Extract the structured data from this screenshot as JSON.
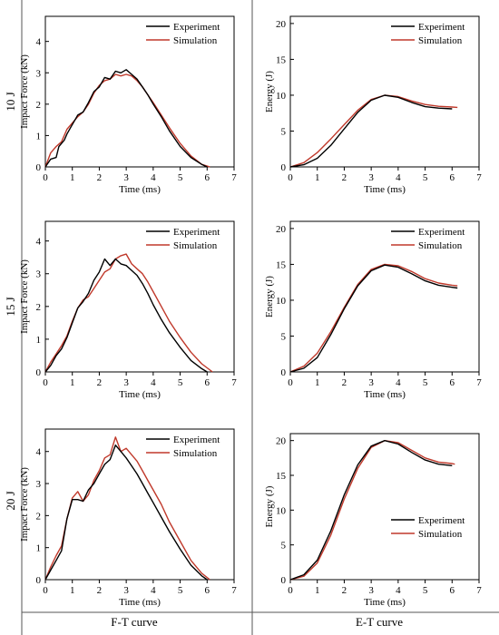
{
  "row_labels": [
    "10 J",
    "15 J",
    "20 J"
  ],
  "column_labels": [
    "F-T curve",
    "E-T curve"
  ],
  "legend": [
    "Experiment",
    "Simulation"
  ],
  "colors": {
    "experiment": "#000000",
    "simulation": "#c0392b",
    "frame": "#555555"
  },
  "chart_data": [
    {
      "type": "line",
      "row": "10 J",
      "column": "F-T curve",
      "xlabel": "Time (ms)",
      "ylabel": "Impact Force (kN)",
      "xlim": [
        0,
        7
      ],
      "ylim": [
        0,
        4.8
      ],
      "xticks": [
        0,
        1,
        2,
        3,
        4,
        5,
        6,
        7
      ],
      "yticks": [
        0,
        1,
        2,
        3,
        4
      ],
      "legend_position": "top-right",
      "series": [
        {
          "name": "Experiment",
          "x": [
            0,
            0.2,
            0.4,
            0.5,
            0.7,
            0.8,
            1.0,
            1.2,
            1.4,
            1.6,
            1.8,
            2.0,
            2.2,
            2.4,
            2.6,
            2.8,
            3.0,
            3.2,
            3.4,
            3.6,
            3.8,
            4.0,
            4.3,
            4.6,
            5.0,
            5.4,
            5.8,
            6.0
          ],
          "y": [
            0.0,
            0.25,
            0.3,
            0.65,
            0.85,
            1.05,
            1.35,
            1.65,
            1.75,
            2.05,
            2.4,
            2.55,
            2.85,
            2.8,
            3.05,
            3.0,
            3.1,
            2.95,
            2.8,
            2.55,
            2.3,
            2.0,
            1.6,
            1.15,
            0.65,
            0.3,
            0.08,
            0.0
          ]
        },
        {
          "name": "Simulation",
          "x": [
            0,
            0.2,
            0.4,
            0.6,
            0.8,
            1.0,
            1.2,
            1.4,
            1.6,
            1.8,
            2.0,
            2.2,
            2.4,
            2.6,
            2.8,
            3.0,
            3.2,
            3.4,
            3.6,
            3.8,
            4.0,
            4.3,
            4.6,
            5.0,
            5.4,
            5.8,
            6.1
          ],
          "y": [
            0.0,
            0.45,
            0.65,
            0.8,
            1.2,
            1.4,
            1.6,
            1.75,
            2.0,
            2.35,
            2.6,
            2.75,
            2.8,
            2.95,
            2.9,
            2.95,
            2.9,
            2.75,
            2.55,
            2.3,
            2.05,
            1.65,
            1.25,
            0.75,
            0.35,
            0.08,
            0.0
          ]
        }
      ]
    },
    {
      "type": "line",
      "row": "10 J",
      "column": "E-T curve",
      "xlabel": "Time (ms)",
      "ylabel": "Energy (J)",
      "xlim": [
        0,
        7
      ],
      "ylim": [
        0,
        21
      ],
      "xticks": [
        0,
        1,
        2,
        3,
        4,
        5,
        6,
        7
      ],
      "yticks": [
        0,
        5,
        10,
        15,
        20
      ],
      "legend_position": "top-right",
      "series": [
        {
          "name": "Experiment",
          "x": [
            0,
            0.5,
            1.0,
            1.5,
            2.0,
            2.5,
            3.0,
            3.5,
            4.0,
            4.5,
            5.0,
            5.5,
            6.0
          ],
          "y": [
            0,
            0.3,
            1.2,
            3.0,
            5.3,
            7.6,
            9.3,
            10.0,
            9.7,
            9.0,
            8.4,
            8.2,
            8.1
          ]
        },
        {
          "name": "Simulation",
          "x": [
            0,
            0.5,
            1.0,
            1.5,
            2.0,
            2.5,
            3.0,
            3.5,
            4.0,
            4.5,
            5.0,
            5.5,
            6.0,
            6.2
          ],
          "y": [
            0,
            0.6,
            2.0,
            3.9,
            5.9,
            7.9,
            9.4,
            10.0,
            9.8,
            9.2,
            8.7,
            8.45,
            8.35,
            8.3
          ]
        }
      ]
    },
    {
      "type": "line",
      "row": "15 J",
      "column": "F-T curve",
      "xlabel": "Time (ms)",
      "ylabel": "Impact Force (kN)",
      "xlim": [
        0,
        7
      ],
      "ylim": [
        0,
        4.6
      ],
      "xticks": [
        0,
        1,
        2,
        3,
        4,
        5,
        6,
        7
      ],
      "yticks": [
        0,
        1,
        2,
        3,
        4
      ],
      "legend_position": "top-right",
      "series": [
        {
          "name": "Experiment",
          "x": [
            0,
            0.2,
            0.4,
            0.6,
            0.8,
            1.0,
            1.2,
            1.4,
            1.6,
            1.8,
            2.0,
            2.2,
            2.4,
            2.6,
            2.8,
            3.0,
            3.2,
            3.4,
            3.6,
            3.8,
            4.0,
            4.3,
            4.6,
            5.0,
            5.4,
            5.8,
            6.0
          ],
          "y": [
            0.0,
            0.2,
            0.5,
            0.7,
            1.05,
            1.5,
            1.95,
            2.15,
            2.4,
            2.8,
            3.05,
            3.45,
            3.25,
            3.45,
            3.3,
            3.25,
            3.1,
            2.95,
            2.7,
            2.4,
            2.05,
            1.6,
            1.2,
            0.75,
            0.35,
            0.1,
            0.0
          ]
        },
        {
          "name": "Simulation",
          "x": [
            0,
            0.2,
            0.4,
            0.6,
            0.8,
            1.0,
            1.2,
            1.4,
            1.6,
            1.8,
            2.0,
            2.2,
            2.4,
            2.6,
            2.8,
            3.0,
            3.2,
            3.4,
            3.6,
            3.8,
            4.0,
            4.3,
            4.6,
            5.0,
            5.4,
            5.8,
            6.2
          ],
          "y": [
            0.0,
            0.3,
            0.55,
            0.8,
            1.1,
            1.55,
            1.95,
            2.2,
            2.3,
            2.55,
            2.8,
            3.05,
            3.15,
            3.45,
            3.55,
            3.6,
            3.3,
            3.15,
            3.0,
            2.75,
            2.45,
            2.0,
            1.55,
            1.05,
            0.6,
            0.25,
            0.0
          ]
        }
      ]
    },
    {
      "type": "line",
      "row": "15 J",
      "column": "E-T curve",
      "xlabel": "Time (ms)",
      "ylabel": "Energy (J)",
      "xlim": [
        0,
        7
      ],
      "ylim": [
        0,
        21
      ],
      "xticks": [
        0,
        1,
        2,
        3,
        4,
        5,
        6,
        7
      ],
      "yticks": [
        0,
        5,
        10,
        15,
        20
      ],
      "legend_position": "top-right",
      "series": [
        {
          "name": "Experiment",
          "x": [
            0,
            0.5,
            1.0,
            1.5,
            2.0,
            2.5,
            3.0,
            3.5,
            4.0,
            4.5,
            5.0,
            5.5,
            6.0,
            6.2
          ],
          "y": [
            0,
            0.5,
            2.0,
            5.2,
            8.8,
            12.0,
            14.1,
            14.9,
            14.6,
            13.7,
            12.7,
            12.1,
            11.8,
            11.7
          ]
        },
        {
          "name": "Simulation",
          "x": [
            0,
            0.5,
            1.0,
            1.5,
            2.0,
            2.5,
            3.0,
            3.5,
            4.0,
            4.5,
            5.0,
            5.5,
            6.0,
            6.2
          ],
          "y": [
            0,
            0.8,
            2.6,
            5.6,
            9.0,
            12.2,
            14.3,
            15.0,
            14.8,
            14.0,
            13.0,
            12.4,
            12.1,
            12.0
          ]
        }
      ]
    },
    {
      "type": "line",
      "row": "20 J",
      "column": "F-T curve",
      "xlabel": "Time (ms)",
      "ylabel": "Impact Force (kN)",
      "xlim": [
        0,
        7
      ],
      "ylim": [
        0,
        4.7
      ],
      "xticks": [
        0,
        1,
        2,
        3,
        4,
        5,
        6,
        7
      ],
      "yticks": [
        0,
        1,
        2,
        3,
        4
      ],
      "legend_position": "top-right",
      "series": [
        {
          "name": "Experiment",
          "x": [
            0,
            0.2,
            0.4,
            0.6,
            0.8,
            1.0,
            1.2,
            1.4,
            1.6,
            1.8,
            2.0,
            2.2,
            2.4,
            2.6,
            2.8,
            3.0,
            3.2,
            3.4,
            3.6,
            3.8,
            4.0,
            4.3,
            4.6,
            5.0,
            5.4,
            5.8,
            6.0
          ],
          "y": [
            0.0,
            0.3,
            0.6,
            0.9,
            1.9,
            2.5,
            2.5,
            2.45,
            2.8,
            3.0,
            3.3,
            3.6,
            3.75,
            4.2,
            4.0,
            3.8,
            3.55,
            3.3,
            3.0,
            2.7,
            2.4,
            1.95,
            1.5,
            0.95,
            0.45,
            0.12,
            0.0
          ]
        },
        {
          "name": "Simulation",
          "x": [
            0,
            0.2,
            0.4,
            0.6,
            0.8,
            1.0,
            1.2,
            1.4,
            1.6,
            1.8,
            2.0,
            2.2,
            2.4,
            2.6,
            2.8,
            3.0,
            3.2,
            3.4,
            3.6,
            3.8,
            4.0,
            4.3,
            4.6,
            5.0,
            5.4,
            5.8,
            6.1
          ],
          "y": [
            0.0,
            0.4,
            0.75,
            1.05,
            1.9,
            2.55,
            2.75,
            2.45,
            2.65,
            3.1,
            3.4,
            3.8,
            3.9,
            4.45,
            4.0,
            4.1,
            3.9,
            3.7,
            3.4,
            3.1,
            2.8,
            2.35,
            1.8,
            1.2,
            0.6,
            0.2,
            0.0
          ]
        }
      ]
    },
    {
      "type": "line",
      "row": "20 J",
      "column": "E-T curve",
      "xlabel": "Time (ms)",
      "ylabel": "Energy (J)",
      "xlim": [
        0,
        7
      ],
      "ylim": [
        0,
        21
      ],
      "xticks": [
        0,
        1,
        2,
        3,
        4,
        5,
        6,
        7
      ],
      "yticks": [
        0,
        5,
        10,
        15,
        20
      ],
      "legend_position": "bottom-right",
      "series": [
        {
          "name": "Experiment",
          "x": [
            0,
            0.5,
            1.0,
            1.5,
            2.0,
            2.5,
            3.0,
            3.5,
            4.0,
            4.5,
            5.0,
            5.5,
            6.0
          ],
          "y": [
            0,
            0.7,
            2.8,
            7.0,
            12.2,
            16.5,
            19.2,
            20.0,
            19.5,
            18.3,
            17.2,
            16.6,
            16.4
          ]
        },
        {
          "name": "Simulation",
          "x": [
            0,
            0.5,
            1.0,
            1.5,
            2.0,
            2.5,
            3.0,
            3.5,
            4.0,
            4.5,
            5.0,
            5.5,
            6.0,
            6.1
          ],
          "y": [
            0,
            0.5,
            2.4,
            6.4,
            11.6,
            16.0,
            19.0,
            20.0,
            19.7,
            18.6,
            17.5,
            16.9,
            16.7,
            16.6
          ]
        }
      ]
    }
  ]
}
